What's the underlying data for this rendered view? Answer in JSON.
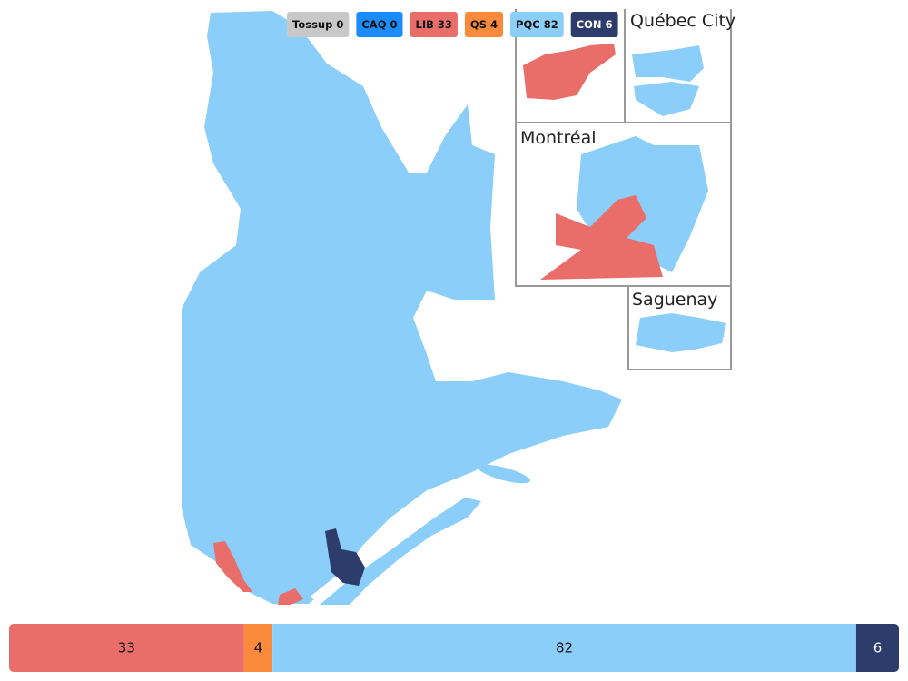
{
  "map": {
    "parties": [
      {
        "name": "Tossup",
        "seats": 0,
        "color": "#c8c8c8"
      },
      {
        "name": "CAQ",
        "seats": 0,
        "color": "#1c8cfb"
      },
      {
        "name": "LIB",
        "seats": 33,
        "color": "#e96d68"
      },
      {
        "name": "QS",
        "seats": 4,
        "color": "#fb8a3c"
      },
      {
        "name": "PQC",
        "seats": 82,
        "color": "#8bcef9"
      },
      {
        "name": "CON",
        "seats": 6,
        "color": "#2c3c6b"
      }
    ],
    "insets": [
      "Québec City",
      "Montréal",
      "Saguenay"
    ]
  }
}
